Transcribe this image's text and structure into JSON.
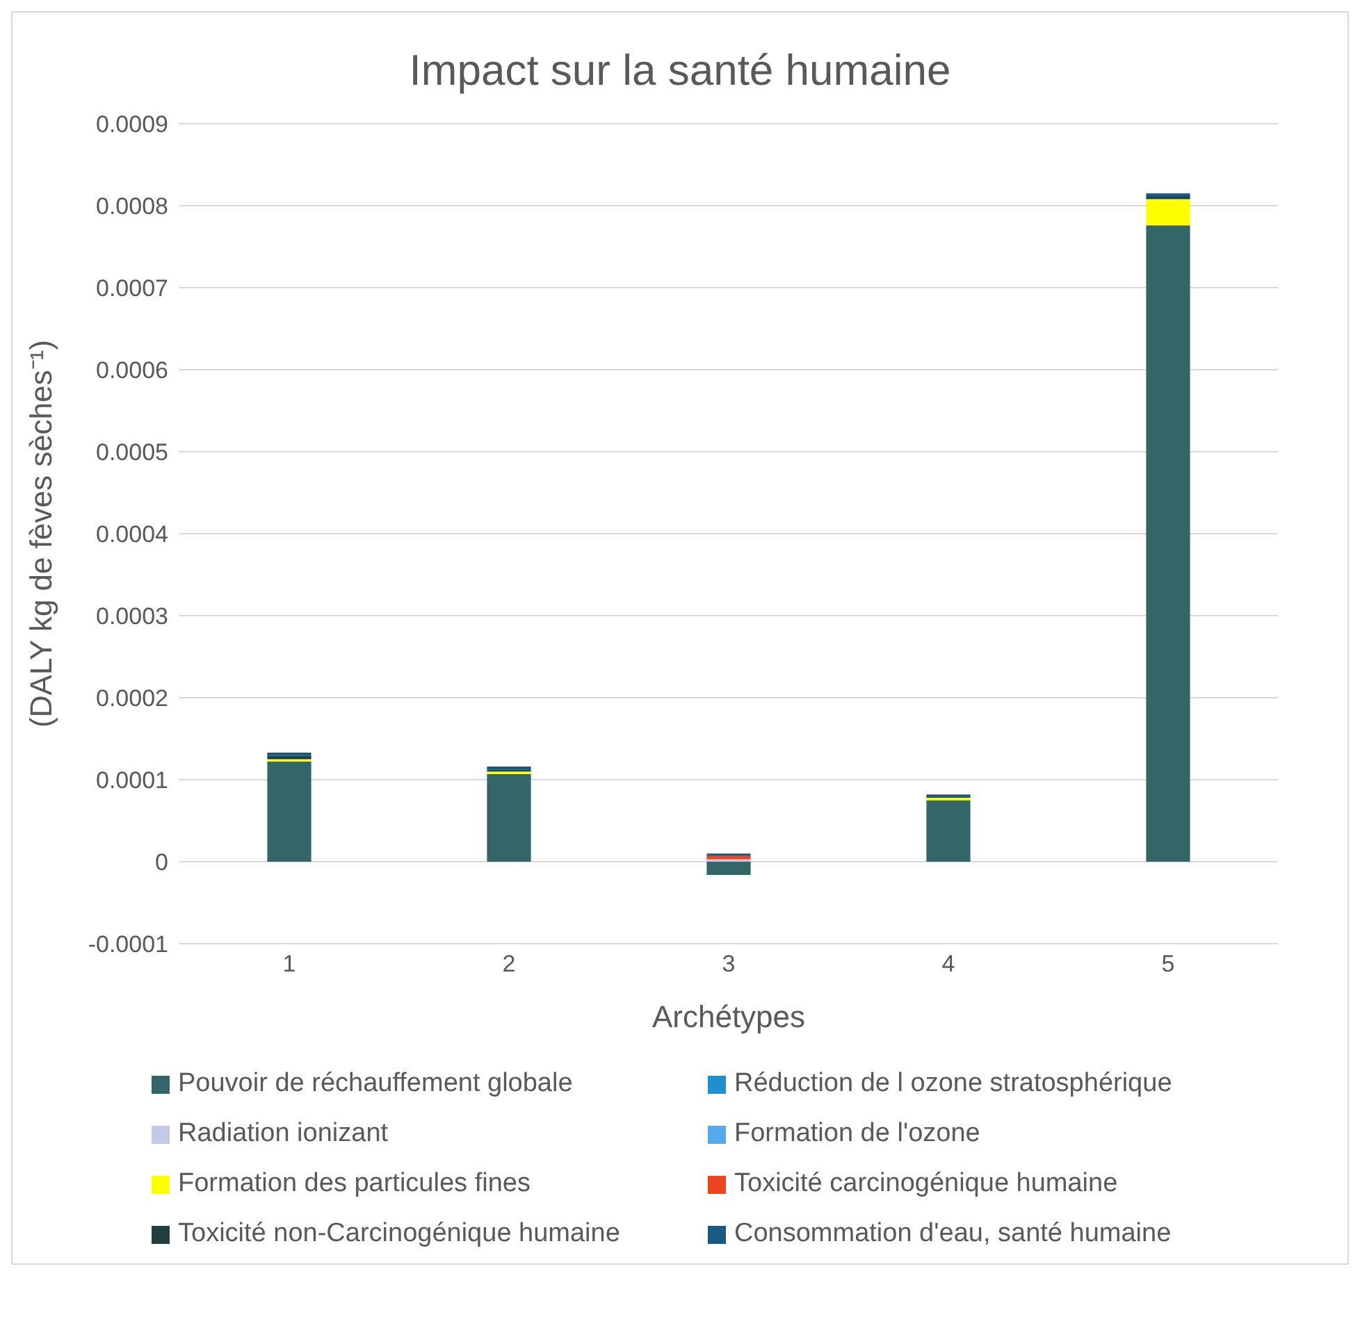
{
  "chart_data": {
    "type": "bar",
    "title": "Impact sur la santé humaine",
    "xlabel": "Archétypes",
    "ylabel": "(DALY kg de fèves sèches⁻¹)",
    "categories": [
      "1",
      "2",
      "3",
      "4",
      "5"
    ],
    "stacked": true,
    "series": [
      {
        "name": "Pouvoir de réchauffement globale",
        "color": "#336666",
        "values": [
          0.000122,
          0.000107,
          -1.6e-05,
          7.5e-05,
          0.000776
        ]
      },
      {
        "name": "Réduction de l ozone stratosphérique",
        "color": "#1f8fd0",
        "values": [
          0,
          0,
          0,
          0,
          0
        ]
      },
      {
        "name": "Radiation ionizant",
        "color": "#c5c9e6",
        "values": [
          0,
          0,
          3e-06,
          0,
          0
        ]
      },
      {
        "name": "Formation de l'ozone",
        "color": "#55aaee",
        "values": [
          0,
          0,
          0,
          0,
          0
        ]
      },
      {
        "name": "Formation des particules fines",
        "color": "#ffff00",
        "values": [
          3e-06,
          3e-06,
          0,
          3e-06,
          3.2e-05
        ]
      },
      {
        "name": "Toxicité carcinogénique humaine",
        "color": "#ee4422",
        "values": [
          0,
          0,
          4e-06,
          0,
          0
        ]
      },
      {
        "name": "Toxicité non-Carcinogénique humaine",
        "color": "#223f3f",
        "values": [
          4e-06,
          2e-06,
          0,
          0,
          3e-06
        ]
      },
      {
        "name": "Consommation d'eau, santé humaine",
        "color": "#185a80",
        "values": [
          4e-06,
          4e-06,
          3e-06,
          4e-06,
          4e-06
        ]
      }
    ],
    "ylim": [
      -0.0001,
      0.0009
    ],
    "yticks": [
      -0.0001,
      0,
      0.0001,
      0.0002,
      0.0003,
      0.0004,
      0.0005,
      0.0006,
      0.0007,
      0.0008,
      0.0009
    ],
    "grid": "y",
    "legend": "bottom"
  }
}
